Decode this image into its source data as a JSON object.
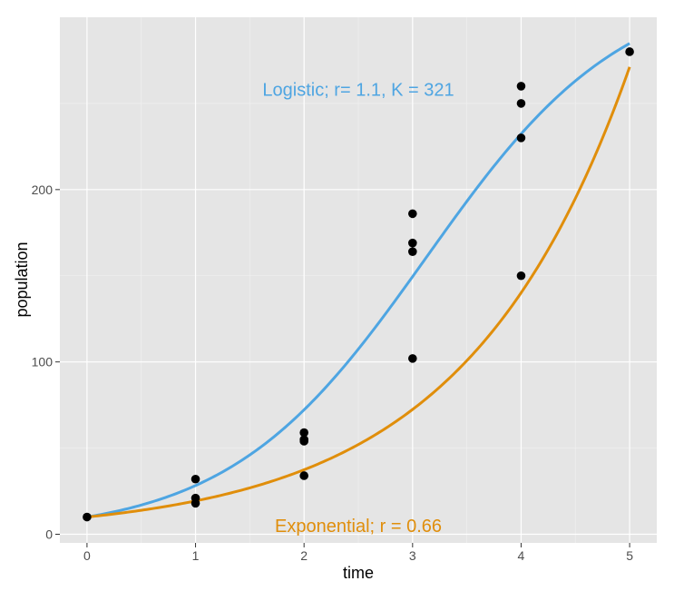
{
  "chart_data": {
    "type": "scatter",
    "xlabel": "time",
    "ylabel": "population",
    "xlim": [
      -0.25,
      5.25
    ],
    "ylim": [
      -5,
      300
    ],
    "x_ticks": [
      0,
      1,
      2,
      3,
      4,
      5
    ],
    "x_tick_labels": [
      "0",
      "1",
      "2",
      "3",
      "4",
      "5"
    ],
    "y_ticks": [
      0,
      100,
      200
    ],
    "y_tick_labels": [
      "0",
      "100",
      "200"
    ],
    "grid": true,
    "background": "#e5e5e5",
    "points": [
      {
        "x": 0,
        "y": 10
      },
      {
        "x": 1,
        "y": 18
      },
      {
        "x": 1,
        "y": 21
      },
      {
        "x": 1,
        "y": 32
      },
      {
        "x": 2,
        "y": 34
      },
      {
        "x": 2,
        "y": 54
      },
      {
        "x": 2,
        "y": 55
      },
      {
        "x": 2,
        "y": 59
      },
      {
        "x": 3,
        "y": 102
      },
      {
        "x": 3,
        "y": 164
      },
      {
        "x": 3,
        "y": 169
      },
      {
        "x": 3,
        "y": 186
      },
      {
        "x": 4,
        "y": 150
      },
      {
        "x": 4,
        "y": 230
      },
      {
        "x": 4,
        "y": 250
      },
      {
        "x": 4,
        "y": 260
      },
      {
        "x": 5,
        "y": 280
      }
    ],
    "point_color": "#000000",
    "fitted_curves": [
      {
        "model": "logistic",
        "N0": 10,
        "r": 1.1,
        "K": 321,
        "color": "#4ea5e2"
      },
      {
        "model": "exponential",
        "N0": 10,
        "r": 0.66,
        "color": "#e08e0b"
      }
    ],
    "annotations": [
      {
        "text": "Logistic; r= 1.1, K = 321",
        "x": 2.5,
        "y": 258,
        "color": "#4ea5e2"
      },
      {
        "text": "Exponential; r = 0.66",
        "x": 2.5,
        "y": 5,
        "color": "#e08e0b"
      }
    ]
  }
}
